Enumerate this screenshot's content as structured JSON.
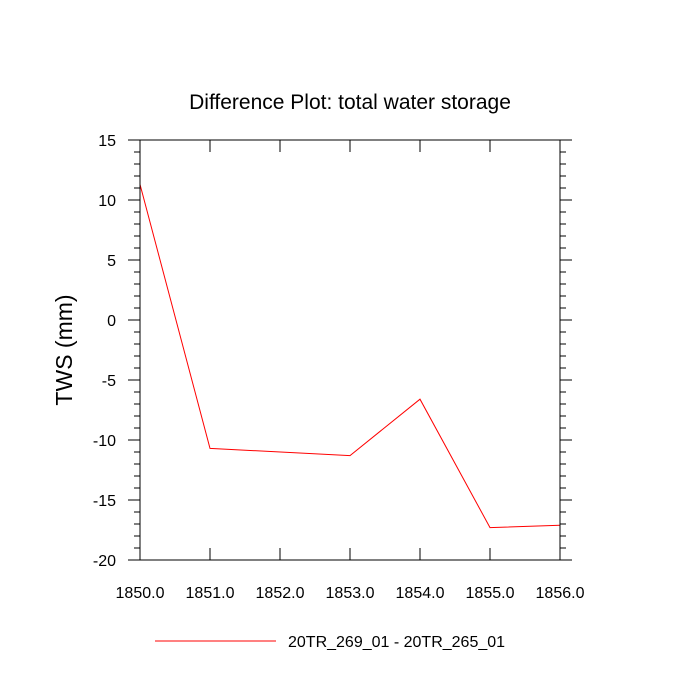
{
  "chart_data": {
    "type": "line",
    "title": "Difference Plot: total water storage",
    "xlabel": "",
    "ylabel": "TWS  (mm)",
    "xlim": [
      1850,
      1856
    ],
    "ylim": [
      -20,
      15
    ],
    "x_ticks": [
      "1850.0",
      "1851.0",
      "1852.0",
      "1853.0",
      "1854.0",
      "1855.0",
      "1856.0"
    ],
    "y_ticks": [
      "15",
      "10",
      "5",
      "0",
      "-5",
      "-10",
      "-15",
      "-20"
    ],
    "grid": false,
    "legend_position": "bottom",
    "series": [
      {
        "name": "20TR_269_01 - 20TR_265_01",
        "color": "#ff0000",
        "x": [
          1850,
          1851,
          1853,
          1854,
          1855,
          1856
        ],
        "y": [
          11.3,
          -10.7,
          -11.3,
          -6.6,
          -17.3,
          -17.1
        ]
      }
    ]
  }
}
